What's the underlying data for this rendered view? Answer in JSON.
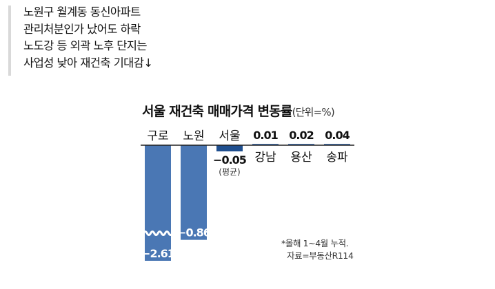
{
  "headline": {
    "lines": [
      "노원구 월계동 동신아파트",
      "관리처분인가 났어도 하락",
      "노도강 등 외곽 노후 단지는",
      "사업성 낮아 재건축 기대감↓"
    ]
  },
  "chart_data": {
    "type": "bar",
    "title": "서울 재건축 매매가격 변동률",
    "unit": "(단위=%)",
    "categories": [
      "구로",
      "노원",
      "서울",
      "강남",
      "용산",
      "송파"
    ],
    "category_notes": [
      "",
      "",
      "(평균)",
      "",
      "",
      ""
    ],
    "values": [
      -2.61,
      -0.86,
      -0.05,
      0.01,
      0.02,
      0.04
    ],
    "value_labels": [
      "−2.61",
      "−0.86",
      "−0.05",
      "0.01",
      "0.02",
      "0.04"
    ],
    "axis_break_on": "구로",
    "colors": {
      "bar": "#4a77b4",
      "average_bar": "#1f4f8f",
      "baseline": "#222222"
    }
  },
  "footnote": {
    "lines": [
      "*올해 1~4월 누적.",
      "자료=부동산R114"
    ]
  }
}
